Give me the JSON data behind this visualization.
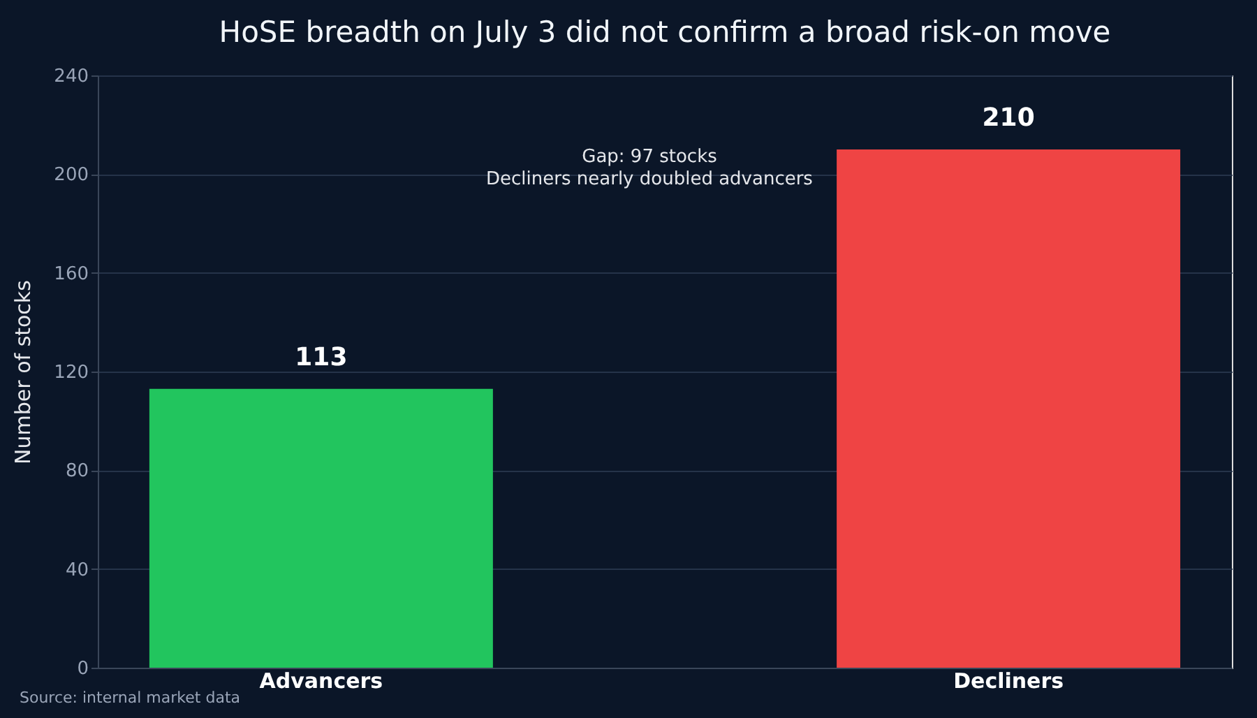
{
  "chart_data": {
    "type": "bar",
    "title": "HoSE breadth on July 3 did not confirm a broad risk-on move",
    "ylabel": "Number of stocks",
    "categories": [
      "Advancers",
      "Decliners"
    ],
    "values": [
      113,
      210
    ],
    "colors": [
      "#22c55e",
      "#ef4444"
    ],
    "ylim": [
      0,
      240
    ],
    "yticks": [
      0,
      40,
      80,
      120,
      160,
      200,
      240
    ],
    "grid": "y",
    "data_labels": true,
    "annotations": [
      "Gap: 97 stocks",
      "Decliners nearly doubled advancers",
      "Source: internal market data"
    ]
  }
}
